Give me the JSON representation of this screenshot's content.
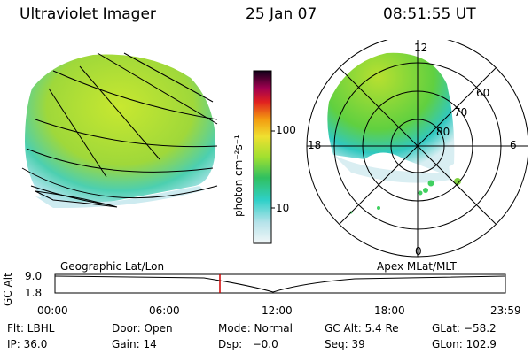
{
  "header": {
    "instrument": "Ultraviolet Imager",
    "date": "25 Jan 07",
    "time": "08:51:55 UT"
  },
  "colorbar": {
    "unit_label": "photon cm⁻²s⁻¹",
    "ticks": [
      "100",
      "10"
    ]
  },
  "polar_plot": {
    "clock_labels": {
      "top": "12",
      "left": "18",
      "right": "6",
      "bottom": "0"
    },
    "lat_labels": [
      "60",
      "70",
      "80"
    ]
  },
  "orbit": {
    "left_title": "Geographic Lat/Lon",
    "right_title": "Apex MLat/MLT",
    "ylabel": "GC Alt",
    "y_ticks": [
      "9.0",
      "1.8"
    ],
    "x_ticks": [
      "00:00",
      "06:00",
      "12:00",
      "18:00",
      "23:59"
    ],
    "marker_color": "#d00000"
  },
  "status": {
    "row1": {
      "filter": "Flt: LBHL",
      "door": "Door: Open",
      "mode": "Mode: Normal",
      "gc_alt": "GC Alt: 5.4 Re",
      "glat": "GLat: −58.2"
    },
    "row2": {
      "ip": "IP: 36.0",
      "gain": "Gain: 14",
      "dsp": "Dsp:   −0.0",
      "seq": "Seq: 39",
      "glon": "GLon: 102.9"
    }
  }
}
